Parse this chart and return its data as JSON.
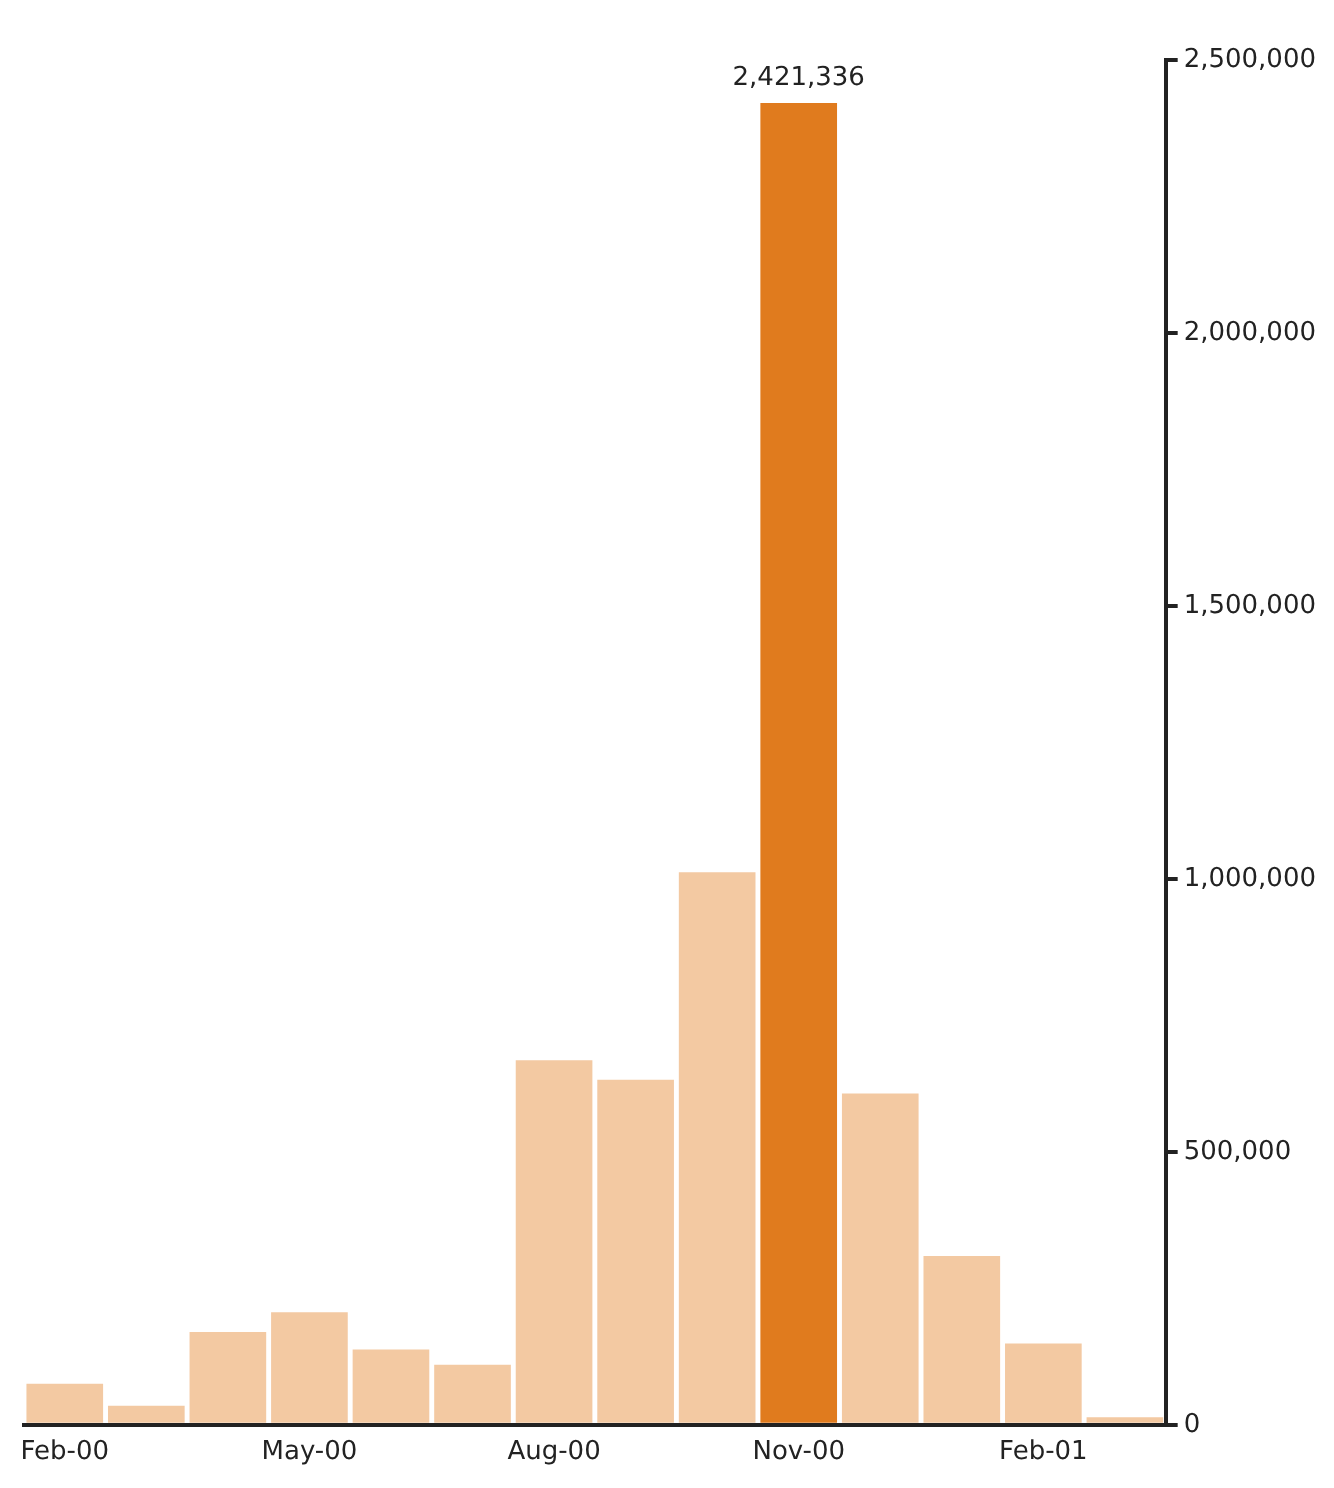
{
  "chart_data": {
    "type": "bar",
    "categories": [
      "Feb-00",
      null,
      null,
      "May-00",
      null,
      null,
      "Aug-00",
      null,
      null,
      "Nov-00",
      null,
      null,
      "Feb-01",
      null
    ],
    "values": [
      75000,
      35000,
      170000,
      206000,
      138000,
      110000,
      668000,
      632000,
      1012000,
      2421336,
      607000,
      309000,
      149000,
      14000
    ],
    "value_labels": [
      null,
      null,
      null,
      null,
      null,
      null,
      null,
      null,
      null,
      "2,421,336",
      null,
      null,
      null,
      null
    ],
    "colors": [
      "#f3c9a2",
      "#f3c9a2",
      "#f3c9a2",
      "#f3c9a2",
      "#f3c9a2",
      "#f3c9a2",
      "#f3c9a2",
      "#f3c9a2",
      "#f3c9a2",
      "#e07b1e",
      "#f3c9a2",
      "#f3c9a2",
      "#f3c9a2",
      "#f3c9a2"
    ],
    "ylim": [
      0,
      2500000
    ],
    "yticks": [
      {
        "value": 0,
        "label": "0"
      },
      {
        "value": 500000,
        "label": "500,000"
      },
      {
        "value": 1000000,
        "label": "1,000,000"
      },
      {
        "value": 1500000,
        "label": "1,500,000"
      },
      {
        "value": 2000000,
        "label": "2,000,000"
      },
      {
        "value": 2500000,
        "label": "2,500,000"
      }
    ],
    "grid": false,
    "legend": false
  }
}
